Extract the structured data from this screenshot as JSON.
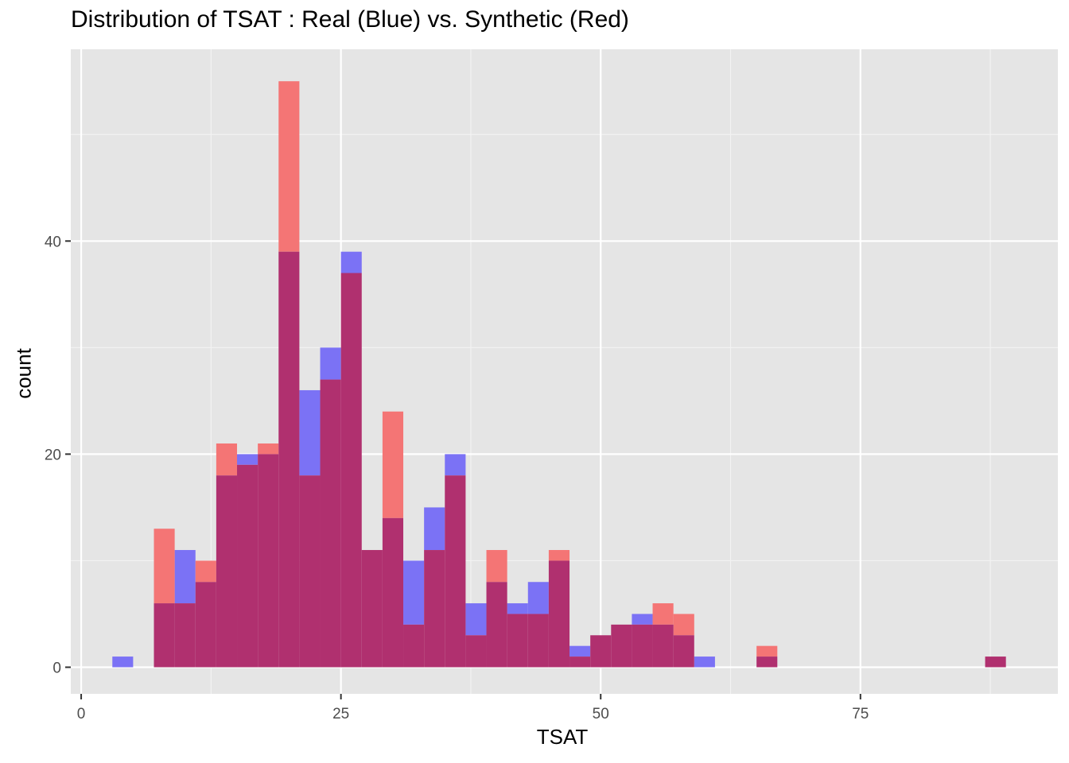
{
  "chart_data": {
    "type": "bar",
    "title": "Distribution of TSAT : Real (Blue) vs. Synthetic (Red)",
    "xlabel": "TSAT",
    "ylabel": "count",
    "xlim": [
      -1,
      94
    ],
    "ylim": [
      -2.5,
      58
    ],
    "x_ticks": [
      0,
      25,
      50,
      75
    ],
    "y_ticks": [
      0,
      20,
      40
    ],
    "bin_width": 2,
    "bin_start": 3,
    "grid": true,
    "legend": "none",
    "series": [
      {
        "color": "#0000ff",
        "opacity": 0.5,
        "values": [
          1,
          0,
          6,
          11,
          8,
          18,
          20,
          20,
          39,
          26,
          30,
          39,
          11,
          14,
          10,
          15,
          20,
          6,
          8,
          6,
          8,
          10,
          2,
          3,
          4,
          5,
          4,
          3,
          1,
          0,
          0,
          1,
          0,
          0,
          0,
          0,
          0,
          0,
          0,
          0,
          0,
          0,
          1
        ]
      },
      {
        "color": "#f8766d",
        "opacity": 1,
        "values": [
          0,
          0,
          13,
          6,
          10,
          21,
          19,
          21,
          55,
          18,
          27,
          37,
          11,
          24,
          4,
          11,
          18,
          3,
          11,
          5,
          5,
          11,
          1,
          3,
          4,
          4,
          6,
          5,
          0,
          0,
          0,
          2,
          0,
          0,
          0,
          0,
          0,
          0,
          0,
          0,
          0,
          0,
          1
        ]
      }
    ]
  }
}
